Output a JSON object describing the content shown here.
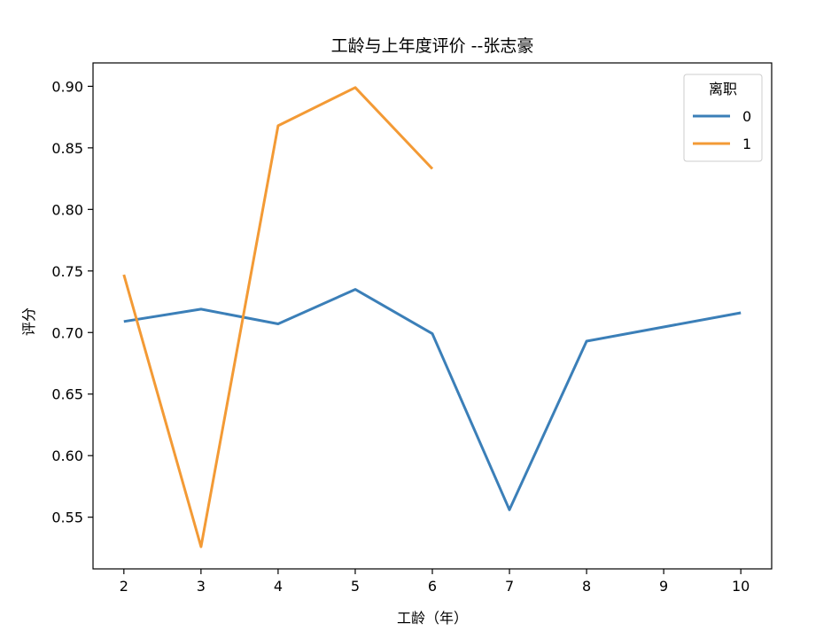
{
  "chart_data": {
    "type": "line",
    "title": "工龄与上年度评价 --张志豪",
    "xlabel": "工龄（年）",
    "ylabel": "评分",
    "xlim": [
      1.6,
      10.4
    ],
    "ylim": [
      0.508,
      0.919
    ],
    "xticks": [
      2,
      3,
      4,
      5,
      6,
      7,
      8,
      9,
      10
    ],
    "yticks": [
      0.55,
      0.6,
      0.65,
      0.7,
      0.75,
      0.8,
      0.85,
      0.9
    ],
    "ytick_labels": [
      "0.55",
      "0.60",
      "0.65",
      "0.70",
      "0.75",
      "0.80",
      "0.85",
      "0.90"
    ],
    "grid": false,
    "legend": {
      "title": "离职",
      "position": "top-right"
    },
    "series": [
      {
        "name": "0",
        "color": "#3b7fb8",
        "x": [
          2,
          3,
          4,
          5,
          6,
          7,
          8,
          10
        ],
        "y": [
          0.709,
          0.719,
          0.707,
          0.735,
          0.699,
          0.556,
          0.693,
          0.716
        ]
      },
      {
        "name": "1",
        "color": "#f39a35",
        "x": [
          2,
          3,
          4,
          5,
          6
        ],
        "y": [
          0.747,
          0.526,
          0.868,
          0.899,
          0.833
        ]
      }
    ]
  }
}
